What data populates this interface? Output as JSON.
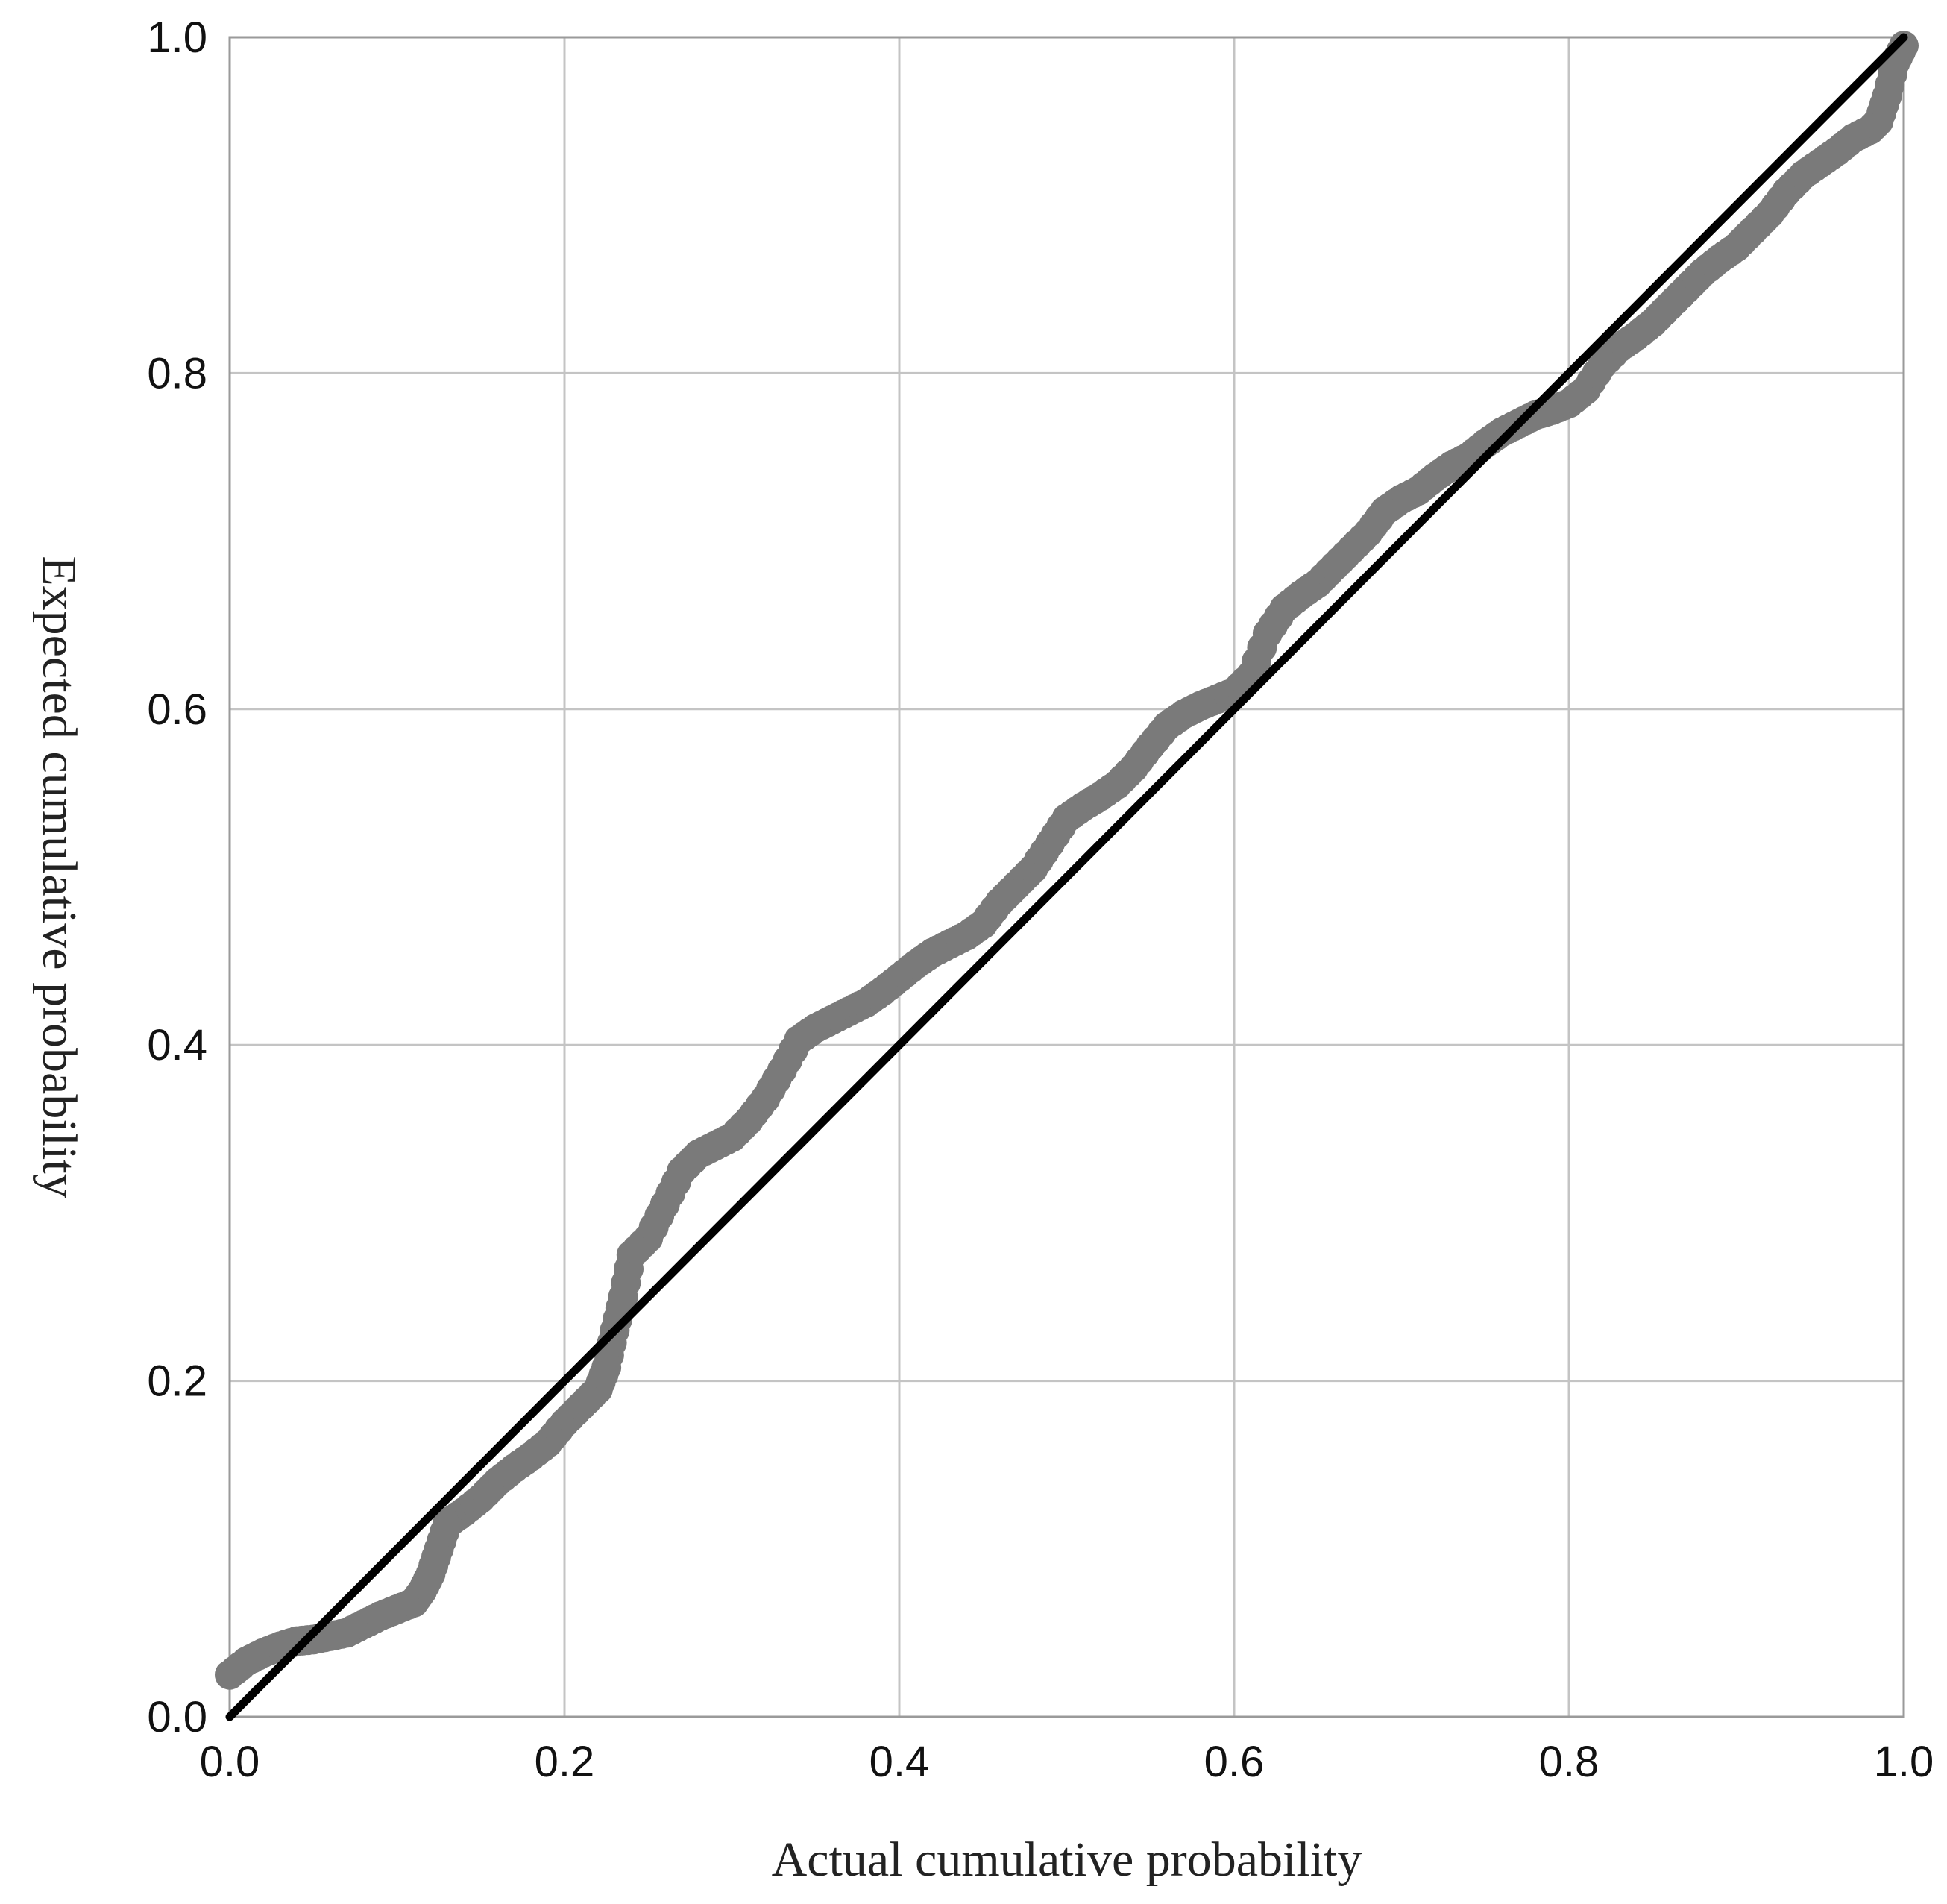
{
  "chart_data": {
    "type": "scatter",
    "title": "",
    "xlabel": "Actual cumulative probability",
    "ylabel": "Expected cumulative probability",
    "xlim": [
      0,
      1
    ],
    "ylim": [
      0,
      1
    ],
    "x_ticks": [
      "0.0",
      "0.2",
      "0.4",
      "0.6",
      "0.8",
      "1.0"
    ],
    "y_ticks": [
      "0.0",
      "0.2",
      "0.4",
      "0.6",
      "0.8",
      "1.0"
    ],
    "grid": true,
    "legend": "none",
    "colors": {
      "points": "#7a7a7a",
      "reference_line": "#000000",
      "grid": "#c4c4c4",
      "frame": "#9a9a9a"
    },
    "reference_line": {
      "from": [
        0,
        0
      ],
      "to": [
        1,
        1
      ]
    },
    "series": [
      {
        "values": [
          [
            0.0,
            0.025
          ],
          [
            0.01,
            0.033
          ],
          [
            0.02,
            0.038
          ],
          [
            0.03,
            0.042
          ],
          [
            0.04,
            0.045
          ],
          [
            0.05,
            0.046
          ],
          [
            0.06,
            0.048
          ],
          [
            0.07,
            0.05
          ],
          [
            0.08,
            0.055
          ],
          [
            0.09,
            0.06
          ],
          [
            0.1,
            0.064
          ],
          [
            0.11,
            0.068
          ],
          [
            0.115,
            0.075
          ],
          [
            0.12,
            0.085
          ],
          [
            0.125,
            0.1
          ],
          [
            0.13,
            0.115
          ],
          [
            0.14,
            0.122
          ],
          [
            0.15,
            0.13
          ],
          [
            0.16,
            0.14
          ],
          [
            0.17,
            0.148
          ],
          [
            0.18,
            0.155
          ],
          [
            0.19,
            0.163
          ],
          [
            0.2,
            0.175
          ],
          [
            0.21,
            0.185
          ],
          [
            0.22,
            0.195
          ],
          [
            0.225,
            0.208
          ],
          [
            0.23,
            0.23
          ],
          [
            0.235,
            0.25
          ],
          [
            0.24,
            0.275
          ],
          [
            0.25,
            0.285
          ],
          [
            0.26,
            0.305
          ],
          [
            0.27,
            0.325
          ],
          [
            0.28,
            0.335
          ],
          [
            0.29,
            0.34
          ],
          [
            0.3,
            0.345
          ],
          [
            0.31,
            0.355
          ],
          [
            0.32,
            0.368
          ],
          [
            0.33,
            0.385
          ],
          [
            0.34,
            0.403
          ],
          [
            0.35,
            0.41
          ],
          [
            0.36,
            0.415
          ],
          [
            0.37,
            0.42
          ],
          [
            0.38,
            0.425
          ],
          [
            0.39,
            0.432
          ],
          [
            0.4,
            0.44
          ],
          [
            0.41,
            0.448
          ],
          [
            0.42,
            0.455
          ],
          [
            0.43,
            0.46
          ],
          [
            0.44,
            0.465
          ],
          [
            0.45,
            0.472
          ],
          [
            0.46,
            0.485
          ],
          [
            0.47,
            0.495
          ],
          [
            0.48,
            0.505
          ],
          [
            0.49,
            0.52
          ],
          [
            0.5,
            0.535
          ],
          [
            0.51,
            0.542
          ],
          [
            0.52,
            0.548
          ],
          [
            0.53,
            0.555
          ],
          [
            0.54,
            0.565
          ],
          [
            0.55,
            0.578
          ],
          [
            0.56,
            0.59
          ],
          [
            0.57,
            0.597
          ],
          [
            0.58,
            0.602
          ],
          [
            0.59,
            0.606
          ],
          [
            0.6,
            0.61
          ],
          [
            0.61,
            0.62
          ],
          [
            0.62,
            0.645
          ],
          [
            0.63,
            0.66
          ],
          [
            0.64,
            0.668
          ],
          [
            0.65,
            0.675
          ],
          [
            0.66,
            0.685
          ],
          [
            0.67,
            0.695
          ],
          [
            0.68,
            0.705
          ],
          [
            0.69,
            0.718
          ],
          [
            0.7,
            0.725
          ],
          [
            0.71,
            0.73
          ],
          [
            0.72,
            0.738
          ],
          [
            0.73,
            0.745
          ],
          [
            0.74,
            0.75
          ],
          [
            0.75,
            0.758
          ],
          [
            0.76,
            0.765
          ],
          [
            0.77,
            0.77
          ],
          [
            0.78,
            0.775
          ],
          [
            0.79,
            0.778
          ],
          [
            0.8,
            0.782
          ],
          [
            0.81,
            0.79
          ],
          [
            0.82,
            0.805
          ],
          [
            0.83,
            0.815
          ],
          [
            0.84,
            0.822
          ],
          [
            0.85,
            0.83
          ],
          [
            0.86,
            0.84
          ],
          [
            0.87,
            0.85
          ],
          [
            0.88,
            0.86
          ],
          [
            0.89,
            0.868
          ],
          [
            0.9,
            0.875
          ],
          [
            0.91,
            0.885
          ],
          [
            0.92,
            0.895
          ],
          [
            0.93,
            0.908
          ],
          [
            0.94,
            0.918
          ],
          [
            0.95,
            0.925
          ],
          [
            0.96,
            0.932
          ],
          [
            0.97,
            0.94
          ],
          [
            0.98,
            0.945
          ],
          [
            0.985,
            0.95
          ],
          [
            0.99,
            0.965
          ],
          [
            0.995,
            0.985
          ],
          [
            1.0,
            0.995
          ]
        ]
      }
    ]
  }
}
